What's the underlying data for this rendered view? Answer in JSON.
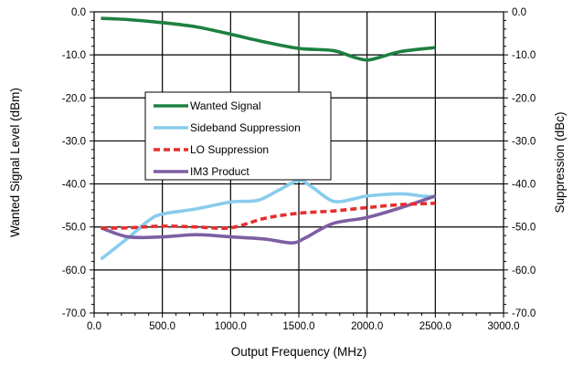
{
  "chart_data": {
    "type": "line",
    "title": "",
    "xlabel": "Output Frequency (MHz)",
    "ylabel_left": "Wanted Signal Level (dBm)",
    "ylabel_right": "Suppression (dBc)",
    "xlim": [
      0,
      3000
    ],
    "ylim_left": [
      -70,
      0
    ],
    "ylim_right": [
      -70,
      0
    ],
    "x_ticks": [
      0,
      500,
      1000,
      1500,
      2000,
      2500,
      3000
    ],
    "x_tick_labels": [
      "0.0",
      "500.0",
      "1000.0",
      "1500.0",
      "2000.0",
      "2500.0",
      "3000.0"
    ],
    "y_ticks": [
      0,
      -10,
      -20,
      -30,
      -40,
      -50,
      -60,
      -70
    ],
    "y_tick_labels_left": [
      "0.0",
      "-10.0",
      "-20.0",
      "-30.0",
      "-40.0",
      "-50.0",
      "-60.0",
      "-70.0"
    ],
    "y_tick_labels_right": [
      "0.0",
      "-10.0",
      "-20.0",
      "-30.0",
      "-40.0",
      "-50.0",
      "-60.0",
      "-70.0"
    ],
    "grid": true,
    "legend_position": "center-left",
    "series": [
      {
        "name": "Wanted Signal",
        "color": "#1e8040",
        "dash": "solid",
        "axis": "left",
        "x": [
          50,
          250,
          500,
          750,
          1000,
          1250,
          1500,
          1750,
          1900,
          2000,
          2100,
          2250,
          2500
        ],
        "y": [
          -1.5,
          -1.8,
          -2.5,
          -3.5,
          -5.2,
          -7.0,
          -8.5,
          -9.0,
          -10.5,
          -11.2,
          -10.5,
          -9.2,
          -8.3
        ]
      },
      {
        "name": "Sideband Suppression",
        "color": "#88ccec",
        "dash": "solid",
        "axis": "right",
        "x": [
          50,
          250,
          400,
          500,
          750,
          1000,
          1200,
          1350,
          1500,
          1600,
          1750,
          1900,
          2000,
          2250,
          2400,
          2500
        ],
        "y": [
          -57.5,
          -52.5,
          -48.5,
          -47.0,
          -45.8,
          -44.2,
          -43.8,
          -41.5,
          -39.2,
          -40.8,
          -44.0,
          -43.5,
          -42.8,
          -42.3,
          -42.8,
          -43.0
        ]
      },
      {
        "name": "LO Suppression",
        "color": "#e62e2e",
        "dash": "dashed",
        "axis": "right",
        "x": [
          50,
          250,
          500,
          750,
          1000,
          1250,
          1500,
          1750,
          2000,
          2250,
          2500
        ],
        "y": [
          -50.3,
          -50.2,
          -49.8,
          -50.0,
          -50.2,
          -48.0,
          -46.8,
          -46.3,
          -45.5,
          -44.8,
          -44.5
        ]
      },
      {
        "name": "IM3 Product",
        "color": "#7d5fa3",
        "dash": "solid",
        "axis": "right",
        "x": [
          50,
          250,
          500,
          750,
          1000,
          1250,
          1450,
          1550,
          1750,
          2000,
          2250,
          2500
        ],
        "y": [
          -50.2,
          -52.3,
          -52.3,
          -51.8,
          -52.3,
          -52.8,
          -53.7,
          -52.5,
          -49.2,
          -47.8,
          -45.5,
          -42.8
        ]
      }
    ]
  }
}
